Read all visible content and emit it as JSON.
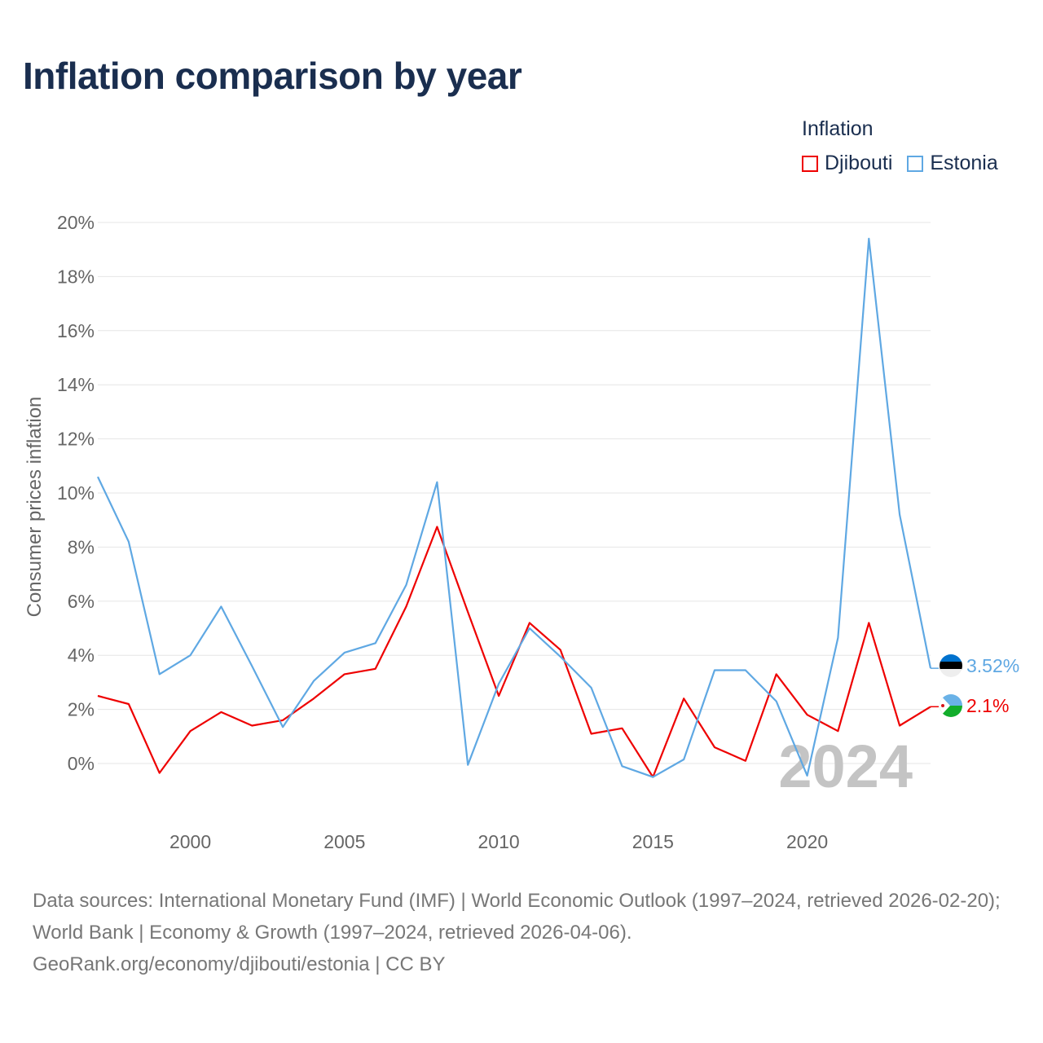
{
  "title": "Inflation comparison by year",
  "legend": {
    "title": "Inflation",
    "items": [
      {
        "name": "Djibouti",
        "color": "#ee0000"
      },
      {
        "name": "Estonia",
        "color": "#5fa8e3"
      }
    ]
  },
  "year_watermark": "2024",
  "end_labels": {
    "estonia": "3.52%",
    "djibouti": "2.1%"
  },
  "footer": {
    "sources": "Data sources: International Monetary Fund (IMF) | World Economic Outlook (1997–2024, retrieved 2026-02-20); World Bank | Economy & Growth (1997–2024, retrieved 2026-04-06).",
    "credit": "GeoRank.org/economy/djibouti/estonia | CC BY"
  },
  "chart_data": {
    "type": "line",
    "title": "Inflation comparison by year",
    "xlabel": "",
    "ylabel": "Consumer prices inflation",
    "x": [
      1997,
      1998,
      1999,
      2000,
      2001,
      2002,
      2003,
      2004,
      2005,
      2006,
      2007,
      2008,
      2009,
      2010,
      2011,
      2012,
      2013,
      2014,
      2015,
      2016,
      2017,
      2018,
      2019,
      2020,
      2021,
      2022,
      2023,
      2024
    ],
    "xlim": [
      1997,
      2024
    ],
    "ylim": [
      -2,
      20
    ],
    "y_ticks": [
      0,
      2,
      4,
      6,
      8,
      10,
      12,
      14,
      16,
      18,
      20
    ],
    "y_tick_labels": [
      "0%",
      "2%",
      "4%",
      "6%",
      "8%",
      "10%",
      "12%",
      "14%",
      "16%",
      "18%",
      "20%"
    ],
    "x_ticks": [
      2000,
      2005,
      2010,
      2015,
      2020
    ],
    "x_tick_labels": [
      "2000",
      "2005",
      "2010",
      "2015",
      "2020"
    ],
    "grid": true,
    "legend_position": "top-right",
    "series": [
      {
        "name": "Djibouti",
        "color": "#ee0000",
        "values": [
          2.5,
          2.2,
          -0.35,
          1.2,
          1.9,
          1.4,
          1.6,
          2.4,
          3.3,
          3.5,
          5.8,
          8.75,
          5.6,
          2.5,
          5.2,
          4.2,
          1.1,
          1.3,
          -0.5,
          2.4,
          0.6,
          0.1,
          3.3,
          1.8,
          1.2,
          5.2,
          1.4,
          2.1
        ]
      },
      {
        "name": "Estonia",
        "color": "#5fa8e3",
        "values": [
          10.6,
          8.2,
          3.3,
          4.0,
          5.8,
          3.6,
          1.35,
          3.05,
          4.1,
          4.45,
          6.6,
          10.4,
          -0.05,
          2.95,
          5.0,
          3.95,
          2.8,
          -0.1,
          -0.5,
          0.15,
          3.45,
          3.45,
          2.3,
          -0.45,
          4.65,
          19.4,
          9.2,
          3.52
        ]
      }
    ]
  }
}
